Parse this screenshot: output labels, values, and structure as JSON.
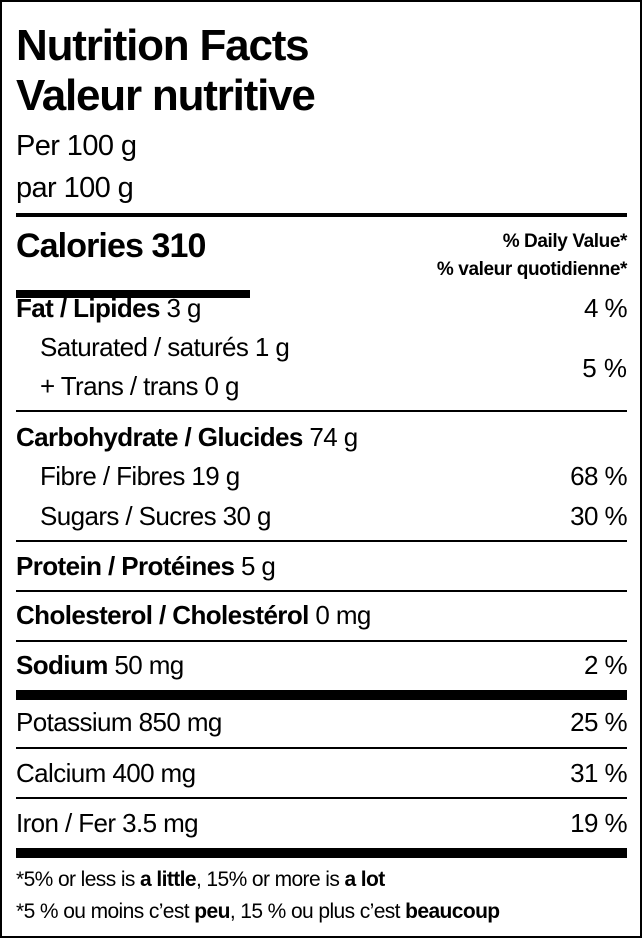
{
  "title_en": "Nutrition Facts",
  "title_fr": "Valeur nutritive",
  "serving_en": "Per 100 g",
  "serving_fr": "par 100 g",
  "calories_label": "Calories",
  "calories_value": "310",
  "dv_header_en": "% Daily Value*",
  "dv_header_fr": "% valeur quotidienne*",
  "nutrients": {
    "fat": {
      "label": "Fat / Lipides",
      "amount": "3 g",
      "dv": "4 %"
    },
    "saturated": {
      "label": "Saturated / saturés",
      "amount": "1 g"
    },
    "trans": {
      "label": "+ Trans / trans",
      "amount": "0 g",
      "dv": "5 %"
    },
    "carbohydrate": {
      "label": "Carbohydrate / Glucides",
      "amount": "74 g"
    },
    "fibre": {
      "label": "Fibre / Fibres",
      "amount": "19 g",
      "dv": "68 %"
    },
    "sugars": {
      "label": "Sugars / Sucres",
      "amount": "30 g",
      "dv": "30 %"
    },
    "protein": {
      "label": "Protein / Protéines",
      "amount": "5 g"
    },
    "cholesterol": {
      "label": "Cholesterol / Cholestérol",
      "amount": "0 mg"
    },
    "sodium": {
      "label": "Sodium",
      "amount": "50 mg",
      "dv": "2 %"
    },
    "potassium": {
      "label": "Potassium",
      "amount": "850 mg",
      "dv": "25 %"
    },
    "calcium": {
      "label": "Calcium",
      "amount": "400 mg",
      "dv": "31 %"
    },
    "iron": {
      "label": "Iron / Fer",
      "amount": "3.5 mg",
      "dv": "19 %"
    }
  },
  "footnote_en": {
    "a": "*5% or less is ",
    "b": "a little",
    "c": ", 15% or more is ",
    "d": "a lot"
  },
  "footnote_fr": {
    "a": "*5 % ou moins c’est ",
    "b": "peu",
    "c": ", 15 % ou plus c’est ",
    "d": "beaucoup"
  }
}
